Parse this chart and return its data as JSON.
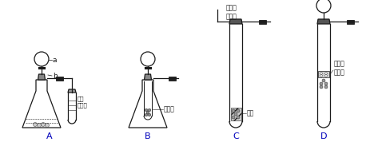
{
  "bg_color": "#ffffff",
  "line_color": "#1a1a1a",
  "dark_gray": "#555555",
  "med_gray": "#888888",
  "light_gray": "#cccccc",
  "label_A": "A",
  "label_B": "B",
  "label_C": "C",
  "label_D": "D",
  "label_a": "a",
  "label_b": "b",
  "text_lime_water": "澄清\n石灰水",
  "text_small_tube": "小试管",
  "text_copper_wire": "可抽动\n的铜丝",
  "text_copper_net": "铜网",
  "text_porous": "多孔塑\n料隔板",
  "fig_width": 4.68,
  "fig_height": 1.78,
  "dpi": 100
}
